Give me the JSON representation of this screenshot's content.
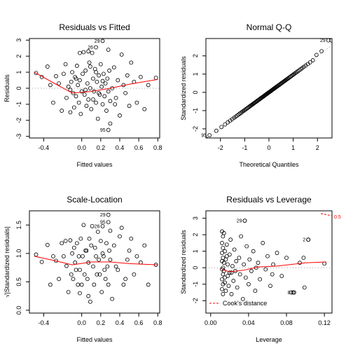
{
  "chart_data": [
    {
      "type": "scatter",
      "title": "Residuals vs Fitted",
      "xlabel": "Fitted values",
      "ylabel": "Residuals",
      "xlim": [
        -0.55,
        0.82
      ],
      "ylim": [
        -3.1,
        3.1
      ],
      "xticks": [
        -0.4,
        0.0,
        0.2,
        0.4,
        0.6,
        0.8
      ],
      "xtick_labels": [
        "-0.4",
        "0.0",
        "0.2",
        "0.4",
        "0.6",
        "0.8"
      ],
      "yticks": [
        -3,
        -2,
        -1,
        0,
        1,
        2,
        3
      ],
      "ytick_labels": [
        "-3",
        "-2",
        "-1",
        "0",
        "1",
        "2",
        "3"
      ],
      "reference_line": 0,
      "points": [
        [
          -0.48,
          0.95
        ],
        [
          -0.42,
          0.7
        ],
        [
          -0.36,
          1.35
        ],
        [
          -0.33,
          0.2
        ],
        [
          -0.3,
          -0.9
        ],
        [
          -0.27,
          0.75
        ],
        [
          -0.24,
          0.3
        ],
        [
          -0.21,
          -1.4
        ],
        [
          -0.19,
          0.9
        ],
        [
          -0.17,
          1.5
        ],
        [
          -0.16,
          -0.6
        ],
        [
          -0.14,
          0.1
        ],
        [
          -0.12,
          -1.5
        ],
        [
          -0.11,
          0.4
        ],
        [
          -0.1,
          1.0
        ],
        [
          -0.09,
          -0.3
        ],
        [
          -0.08,
          -1.2
        ],
        [
          -0.07,
          0.7
        ],
        [
          -0.06,
          -0.5
        ],
        [
          -0.05,
          1.4
        ],
        [
          -0.04,
          0.2
        ],
        [
          -0.03,
          -0.9
        ],
        [
          -0.02,
          0.5
        ],
        [
          -0.01,
          -1.6
        ],
        [
          0.0,
          -0.2
        ],
        [
          0.01,
          0.9
        ],
        [
          0.02,
          2.25
        ],
        [
          0.03,
          -0.4
        ],
        [
          0.04,
          1.1
        ],
        [
          0.05,
          -1.1
        ],
        [
          0.06,
          0.3
        ],
        [
          0.07,
          -0.7
        ],
        [
          0.08,
          1.6
        ],
        [
          0.09,
          0.0
        ],
        [
          0.1,
          -1.3
        ],
        [
          0.11,
          2.2
        ],
        [
          0.12,
          0.6
        ],
        [
          0.13,
          -0.2
        ],
        [
          0.14,
          1.2
        ],
        [
          0.15,
          -0.9
        ],
        [
          0.16,
          0.4
        ],
        [
          0.17,
          -1.9
        ],
        [
          0.18,
          0.8
        ],
        [
          0.19,
          -0.4
        ],
        [
          0.2,
          1.5
        ],
        [
          0.21,
          0.1
        ],
        [
          0.22,
          -1.0
        ],
        [
          0.23,
          0.9
        ],
        [
          0.24,
          -0.5
        ],
        [
          0.25,
          0.3
        ],
        [
          0.26,
          -1.4
        ],
        [
          0.27,
          0.6
        ],
        [
          0.28,
          -0.2
        ],
        [
          0.29,
          1.1
        ],
        [
          0.3,
          -0.8
        ],
        [
          0.32,
          0.0
        ],
        [
          0.34,
          1.3
        ],
        [
          0.36,
          -0.6
        ],
        [
          0.38,
          0.5
        ],
        [
          0.4,
          -1.7
        ],
        [
          0.42,
          2.1
        ],
        [
          0.44,
          0.2
        ],
        [
          0.46,
          -0.3
        ],
        [
          0.48,
          0.8
        ],
        [
          0.5,
          -1.1
        ],
        [
          0.52,
          1.6
        ],
        [
          0.55,
          0.4
        ],
        [
          0.58,
          -0.9
        ],
        [
          0.62,
          0.7
        ],
        [
          0.66,
          -1.3
        ],
        [
          0.7,
          0.2
        ],
        [
          0.78,
          0.65
        ],
        [
          -0.02,
          2.2
        ],
        [
          0.07,
          2.3
        ],
        [
          0.3,
          -2.2
        ],
        [
          0.18,
          -0.3
        ],
        [
          0.04,
          -0.1
        ],
        [
          -0.06,
          0.6
        ],
        [
          0.12,
          -0.7
        ],
        [
          0.22,
          0.45
        ],
        [
          0.28,
          2.4
        ],
        [
          0.35,
          -1.0
        ],
        [
          0.15,
          1.0
        ],
        [
          0.09,
          1.35
        ],
        [
          -0.12,
          -0.1
        ]
      ],
      "labeled_points": [
        {
          "label": "29",
          "x": 0.22,
          "y": 2.95
        },
        {
          "label": "26",
          "x": 0.15,
          "y": 2.55
        },
        {
          "label": "95",
          "x": 0.28,
          "y": -2.6
        }
      ],
      "smoother": [
        [
          -0.5,
          1.0
        ],
        [
          -0.3,
          0.35
        ],
        [
          -0.1,
          -0.3
        ],
        [
          0.1,
          -0.2
        ],
        [
          0.3,
          0.0
        ],
        [
          0.5,
          0.25
        ],
        [
          0.8,
          0.55
        ]
      ]
    },
    {
      "type": "scatter",
      "title": "Normal Q-Q",
      "xlabel": "Theoretical Quantiles",
      "ylabel": "Standardized residuals",
      "xlim": [
        -2.6,
        2.6
      ],
      "ylim": [
        -2.5,
        2.95
      ],
      "xticks": [
        -2,
        -1,
        0,
        1,
        2
      ],
      "xtick_labels": [
        "-2",
        "-1",
        "0",
        "1",
        "2"
      ],
      "yticks": [
        -2,
        -1,
        0,
        1,
        2
      ],
      "ytick_labels": [
        "-2",
        "-1",
        "0",
        "1",
        "2"
      ],
      "reference_line": "qq",
      "n_points": 100,
      "labeled_points": [
        {
          "label": "29",
          "x": 2.45,
          "y": 2.85
        },
        {
          "label": "95",
          "x": -2.45,
          "y": -2.35
        }
      ]
    },
    {
      "type": "scatter",
      "title": "Scale-Location",
      "xlabel": "Fitted values",
      "ylabel": "√|Standardized residuals|",
      "xlim": [
        -0.55,
        0.82
      ],
      "ylim": [
        -0.05,
        1.75
      ],
      "xticks": [
        -0.4,
        0.0,
        0.2,
        0.4,
        0.6,
        0.8
      ],
      "xtick_labels": [
        "-0.4",
        "0.0",
        "0.2",
        "0.4",
        "0.6",
        "0.8"
      ],
      "yticks": [
        0.0,
        0.5,
        1.0,
        1.5
      ],
      "ytick_labels": [
        "0.0",
        "0.5",
        "1.0",
        "1.5"
      ],
      "points": [
        [
          -0.48,
          0.98
        ],
        [
          -0.42,
          0.85
        ],
        [
          -0.36,
          1.15
        ],
        [
          -0.33,
          0.45
        ],
        [
          -0.3,
          0.95
        ],
        [
          -0.27,
          0.87
        ],
        [
          -0.24,
          0.55
        ],
        [
          -0.21,
          1.18
        ],
        [
          -0.19,
          0.95
        ],
        [
          -0.17,
          1.22
        ],
        [
          -0.16,
          0.78
        ],
        [
          -0.14,
          0.32
        ],
        [
          -0.12,
          1.23
        ],
        [
          -0.11,
          0.63
        ],
        [
          -0.1,
          1.0
        ],
        [
          -0.09,
          0.55
        ],
        [
          -0.08,
          1.1
        ],
        [
          -0.07,
          0.84
        ],
        [
          -0.06,
          0.71
        ],
        [
          -0.05,
          1.18
        ],
        [
          -0.04,
          0.45
        ],
        [
          -0.03,
          0.95
        ],
        [
          -0.02,
          0.71
        ],
        [
          -0.01,
          1.26
        ],
        [
          0.0,
          0.45
        ],
        [
          0.01,
          0.95
        ],
        [
          0.02,
          1.5
        ],
        [
          0.03,
          0.63
        ],
        [
          0.04,
          1.05
        ],
        [
          0.05,
          1.05
        ],
        [
          0.06,
          0.55
        ],
        [
          0.07,
          0.84
        ],
        [
          0.08,
          1.26
        ],
        [
          0.09,
          0.15
        ],
        [
          0.1,
          1.14
        ],
        [
          0.11,
          1.48
        ],
        [
          0.12,
          0.77
        ],
        [
          0.13,
          0.45
        ],
        [
          0.14,
          1.1
        ],
        [
          0.15,
          0.95
        ],
        [
          0.16,
          0.63
        ],
        [
          0.17,
          1.38
        ],
        [
          0.18,
          0.89
        ],
        [
          0.19,
          0.63
        ],
        [
          0.2,
          1.22
        ],
        [
          0.21,
          0.32
        ],
        [
          0.22,
          1.0
        ],
        [
          0.23,
          0.95
        ],
        [
          0.24,
          0.71
        ],
        [
          0.25,
          0.55
        ],
        [
          0.26,
          1.18
        ],
        [
          0.27,
          0.77
        ],
        [
          0.28,
          0.45
        ],
        [
          0.29,
          1.05
        ],
        [
          0.3,
          0.89
        ],
        [
          0.32,
          0.2
        ],
        [
          0.34,
          1.14
        ],
        [
          0.36,
          0.77
        ],
        [
          0.38,
          0.71
        ],
        [
          0.4,
          1.3
        ],
        [
          0.42,
          1.45
        ],
        [
          0.44,
          0.45
        ],
        [
          0.46,
          0.55
        ],
        [
          0.48,
          0.89
        ],
        [
          0.5,
          1.05
        ],
        [
          0.52,
          1.26
        ],
        [
          0.55,
          0.63
        ],
        [
          0.58,
          0.95
        ],
        [
          0.62,
          0.84
        ],
        [
          0.66,
          1.14
        ],
        [
          0.7,
          0.45
        ],
        [
          0.78,
          0.8
        ],
        [
          -0.02,
          0.3
        ],
        [
          0.07,
          0.25
        ],
        [
          0.3,
          1.4
        ]
      ],
      "labeled_points": [
        {
          "label": "29",
          "x": 0.28,
          "y": 1.68
        },
        {
          "label": "95",
          "x": 0.28,
          "y": 1.55
        },
        {
          "label": "26",
          "x": 0.22,
          "y": 1.48
        }
      ],
      "smoother": [
        [
          -0.5,
          0.95
        ],
        [
          -0.3,
          0.88
        ],
        [
          -0.1,
          0.8
        ],
        [
          0.1,
          0.85
        ],
        [
          0.3,
          0.85
        ],
        [
          0.5,
          0.82
        ],
        [
          0.8,
          0.8
        ]
      ]
    },
    {
      "type": "scatter",
      "title": "Residuals vs Leverage",
      "xlabel": "Leverage",
      "ylabel": "Standardized residuals",
      "xlim": [
        -0.005,
        0.128
      ],
      "ylim": [
        -2.75,
        3.45
      ],
      "xticks": [
        0.0,
        0.04,
        0.08,
        0.12
      ],
      "xtick_labels": [
        "0.00",
        "0.04",
        "0.08",
        "0.12"
      ],
      "yticks": [
        -2,
        -1,
        0,
        1,
        2,
        3
      ],
      "ytick_labels": [
        "-2",
        "-1",
        "0",
        "1",
        "2",
        "3"
      ],
      "reference_line": 0,
      "points": [
        [
          0.012,
          2.2
        ],
        [
          0.012,
          1.5
        ],
        [
          0.012,
          0.9
        ],
        [
          0.012,
          0.4
        ],
        [
          0.012,
          -0.1
        ],
        [
          0.012,
          -0.7
        ],
        [
          0.012,
          -1.3
        ],
        [
          0.013,
          1.9
        ],
        [
          0.013,
          1.2
        ],
        [
          0.013,
          0.6
        ],
        [
          0.013,
          0.0
        ],
        [
          0.013,
          -0.4
        ],
        [
          0.013,
          -1.0
        ],
        [
          0.013,
          -1.6
        ],
        [
          0.014,
          2.1
        ],
        [
          0.014,
          0.3
        ],
        [
          0.014,
          -0.2
        ],
        [
          0.015,
          1.0
        ],
        [
          0.015,
          -0.9
        ],
        [
          0.016,
          0.5
        ],
        [
          0.016,
          -1.4
        ],
        [
          0.017,
          1.4
        ],
        [
          0.018,
          -0.5
        ],
        [
          0.018,
          0.2
        ],
        [
          0.019,
          -1.1
        ],
        [
          0.02,
          0.8
        ],
        [
          0.02,
          -0.3
        ],
        [
          0.021,
          1.7
        ],
        [
          0.022,
          -1.6
        ],
        [
          0.023,
          0.1
        ],
        [
          0.024,
          -0.8
        ],
        [
          0.025,
          1.1
        ],
        [
          0.026,
          -0.2
        ],
        [
          0.027,
          0.4
        ],
        [
          0.028,
          -1.2
        ],
        [
          0.03,
          0.6
        ],
        [
          0.031,
          -0.4
        ],
        [
          0.032,
          1.9
        ],
        [
          0.034,
          -1.9
        ],
        [
          0.035,
          0.2
        ],
        [
          0.037,
          -0.6
        ],
        [
          0.038,
          1.3
        ],
        [
          0.04,
          -1.0
        ],
        [
          0.041,
          0.5
        ],
        [
          0.043,
          -0.2
        ],
        [
          0.045,
          1.0
        ],
        [
          0.047,
          -1.4
        ],
        [
          0.05,
          0.3
        ],
        [
          0.052,
          -0.7
        ],
        [
          0.055,
          1.5
        ],
        [
          0.058,
          -0.1
        ],
        [
          0.06,
          0.7
        ],
        [
          0.063,
          -1.1
        ],
        [
          0.066,
          0.2
        ],
        [
          0.07,
          0.9
        ],
        [
          0.075,
          -0.5
        ],
        [
          0.08,
          0.6
        ],
        [
          0.088,
          -1.5
        ],
        [
          0.094,
          0.3
        ],
        [
          0.098,
          0.6
        ],
        [
          0.103,
          1.7
        ],
        [
          0.12,
          0.25
        ],
        [
          0.015,
          -0.6
        ],
        [
          0.017,
          0.7
        ],
        [
          0.022,
          -0.3
        ],
        [
          0.036,
          2.85
        ],
        [
          0.048,
          0.0
        ],
        [
          0.065,
          -0.4
        ],
        [
          0.085,
          -1.5
        ],
        [
          0.099,
          -1.2
        ]
      ],
      "labeled_points": [
        {
          "label": "29",
          "x": 0.036,
          "y": 2.85
        },
        {
          "label": "2",
          "x": 0.103,
          "y": 1.7
        },
        {
          "label": "8",
          "x": 0.087,
          "y": -1.5
        }
      ],
      "smoother": [
        [
          0.012,
          -0.1
        ],
        [
          0.02,
          -0.25
        ],
        [
          0.035,
          -0.15
        ],
        [
          0.05,
          0.05
        ],
        [
          0.07,
          0.1
        ],
        [
          0.1,
          0.3
        ],
        [
          0.122,
          0.35
        ]
      ],
      "cooks_label": "0.5",
      "legend": "Cook's distance",
      "legend_position": "bottom-left"
    }
  ]
}
